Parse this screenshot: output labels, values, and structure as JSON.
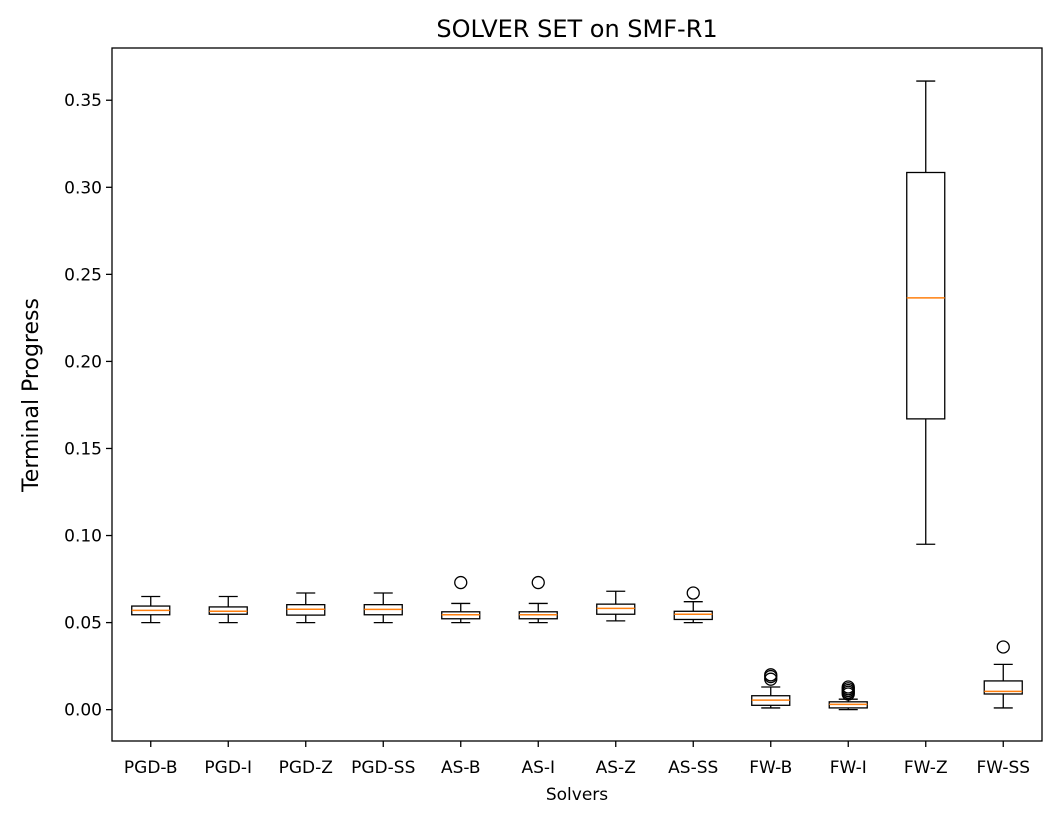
{
  "chart_data": {
    "type": "box",
    "title": "SOLVER SET on SMF-R1",
    "xlabel": "Solvers",
    "ylabel": "Terminal Progress",
    "ylim": [
      -0.018,
      0.38
    ],
    "yticks": [
      "0.00",
      "0.05",
      "0.10",
      "0.15",
      "0.20",
      "0.25",
      "0.30",
      "0.35"
    ],
    "grid": false,
    "colors": {
      "box": "#000000",
      "median": "#ff7f0e",
      "background": "#ffffff"
    },
    "categories": [
      "PGD-B",
      "PGD-I",
      "PGD-Z",
      "PGD-SS",
      "AS-B",
      "AS-I",
      "AS-Z",
      "AS-SS",
      "FW-B",
      "FW-I",
      "FW-Z",
      "FW-SS"
    ],
    "boxes": [
      {
        "label": "PGD-B",
        "whislo": 0.05,
        "q1": 0.0545,
        "med": 0.057,
        "q3": 0.0595,
        "whishi": 0.065,
        "fliers": []
      },
      {
        "label": "PGD-I",
        "whislo": 0.05,
        "q1": 0.0548,
        "med": 0.0565,
        "q3": 0.059,
        "whishi": 0.065,
        "fliers": []
      },
      {
        "label": "PGD-Z",
        "whislo": 0.05,
        "q1": 0.0543,
        "med": 0.0577,
        "q3": 0.0603,
        "whishi": 0.067,
        "fliers": []
      },
      {
        "label": "PGD-SS",
        "whislo": 0.05,
        "q1": 0.0545,
        "med": 0.0576,
        "q3": 0.0603,
        "whishi": 0.067,
        "fliers": []
      },
      {
        "label": "AS-B",
        "whislo": 0.05,
        "q1": 0.0522,
        "med": 0.0545,
        "q3": 0.0562,
        "whishi": 0.061,
        "fliers": [
          0.073
        ]
      },
      {
        "label": "AS-I",
        "whislo": 0.05,
        "q1": 0.0522,
        "med": 0.0545,
        "q3": 0.0562,
        "whishi": 0.061,
        "fliers": [
          0.073
        ]
      },
      {
        "label": "AS-Z",
        "whislo": 0.051,
        "q1": 0.0548,
        "med": 0.0582,
        "q3": 0.0606,
        "whishi": 0.068,
        "fliers": []
      },
      {
        "label": "AS-SS",
        "whislo": 0.05,
        "q1": 0.0518,
        "med": 0.0548,
        "q3": 0.0565,
        "whishi": 0.062,
        "fliers": [
          0.067
        ]
      },
      {
        "label": "FW-B",
        "whislo": 0.001,
        "q1": 0.0025,
        "med": 0.0055,
        "q3": 0.008,
        "whishi": 0.013,
        "fliers": [
          0.0175,
          0.019,
          0.02
        ]
      },
      {
        "label": "FW-I",
        "whislo": 0.0,
        "q1": 0.001,
        "med": 0.003,
        "q3": 0.0045,
        "whishi": 0.006,
        "fliers": [
          0.009,
          0.01,
          0.011,
          0.012,
          0.013
        ]
      },
      {
        "label": "FW-Z",
        "whislo": 0.095,
        "q1": 0.167,
        "med": 0.2365,
        "q3": 0.3085,
        "whishi": 0.361,
        "fliers": []
      },
      {
        "label": "FW-SS",
        "whislo": 0.001,
        "q1": 0.009,
        "med": 0.0105,
        "q3": 0.0165,
        "whishi": 0.026,
        "fliers": [
          0.036
        ]
      }
    ]
  }
}
